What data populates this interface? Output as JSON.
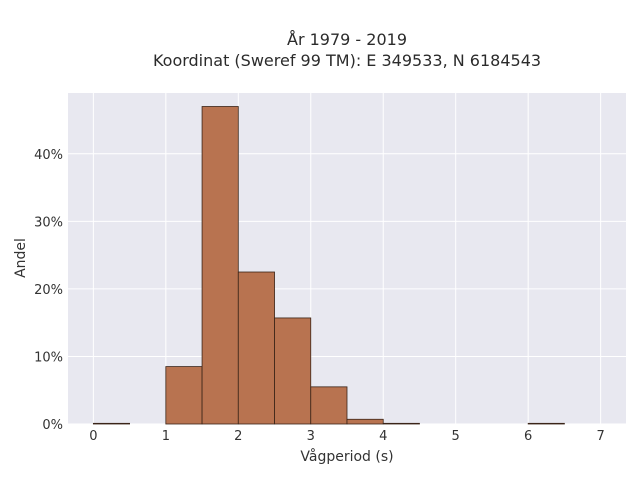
{
  "chart_data": {
    "type": "bar",
    "title_line1": "År 1979 - 2019",
    "title_line2": "Koordinat (Sweref 99 TM): E 349533, N 6184543",
    "xlabel": "Vågperiod (s)",
    "ylabel": "Andel",
    "xlim": [
      -0.35,
      7.35
    ],
    "ylim": [
      0,
      0.49
    ],
    "x_ticks": [
      0,
      1,
      2,
      3,
      4,
      5,
      6,
      7
    ],
    "y_ticks": [
      0,
      0.1,
      0.2,
      0.3,
      0.4
    ],
    "y_tick_labels": [
      "0%",
      "10%",
      "20%",
      "30%",
      "40%"
    ],
    "grid": true,
    "bin_width": 0.5,
    "bins": [
      {
        "x0": 0.0,
        "value": 0.001
      },
      {
        "x0": 0.5,
        "value": 0.0
      },
      {
        "x0": 1.0,
        "value": 0.085
      },
      {
        "x0": 1.5,
        "value": 0.47
      },
      {
        "x0": 2.0,
        "value": 0.225
      },
      {
        "x0": 2.5,
        "value": 0.157
      },
      {
        "x0": 3.0,
        "value": 0.055
      },
      {
        "x0": 3.5,
        "value": 0.007
      },
      {
        "x0": 4.0,
        "value": 0.001
      },
      {
        "x0": 4.5,
        "value": 0.0
      },
      {
        "x0": 5.0,
        "value": 0.0
      },
      {
        "x0": 5.5,
        "value": 0.0
      },
      {
        "x0": 6.0,
        "value": 0.001
      },
      {
        "x0": 6.5,
        "value": 0.0
      }
    ],
    "colors": {
      "bar_fill": "#b87350",
      "bar_stroke": "#3a2418",
      "plot_bg": "#e8e8f0",
      "grid": "#ffffff"
    }
  }
}
